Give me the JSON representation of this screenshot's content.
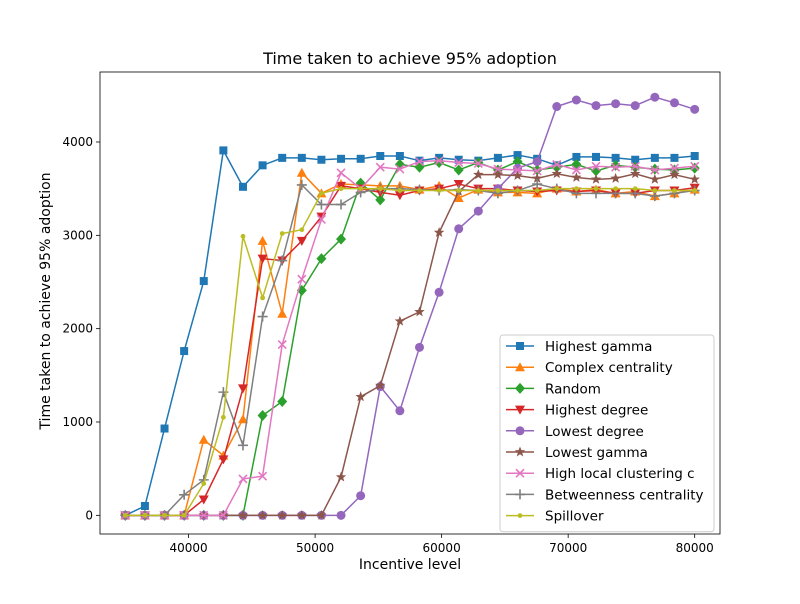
{
  "chart_data": {
    "type": "line",
    "title": "Time taken to achieve 95% adoption",
    "xlabel": "Incentive level",
    "ylabel": "Time taken to achieve 95% adoption",
    "xlim": [
      33000,
      82000
    ],
    "ylim": [
      -200,
      4750
    ],
    "xticks": [
      40000,
      50000,
      60000,
      70000,
      80000
    ],
    "yticks": [
      0,
      1000,
      2000,
      3000,
      4000
    ],
    "grid": false,
    "legend_position": "lower-right",
    "series": [
      {
        "name": "Highest gamma",
        "color": "#1f77b4",
        "marker": "square",
        "x": [
          35000,
          36550,
          38100,
          39650,
          41200,
          42750,
          44300,
          45850,
          47400,
          48950,
          50500,
          52050,
          53600,
          55150,
          56700,
          58250,
          59800,
          61350,
          62900,
          64450,
          66000,
          67550,
          69100,
          70650,
          72200,
          73750,
          75300,
          76850,
          78400,
          80000
        ],
        "y": [
          0,
          100,
          930,
          1760,
          2510,
          3910,
          3520,
          3750,
          3830,
          3830,
          3810,
          3820,
          3820,
          3850,
          3850,
          3800,
          3830,
          3810,
          3800,
          3830,
          3860,
          3820,
          3750,
          3840,
          3840,
          3830,
          3810,
          3830,
          3830,
          3850
        ]
      },
      {
        "name": "Complex centrality",
        "color": "#ff7f0e",
        "marker": "triangle-up",
        "x": [
          35000,
          36550,
          38100,
          39650,
          41200,
          42750,
          44300,
          45850,
          47400,
          48950,
          50500,
          52050,
          53600,
          55150,
          56700,
          58250,
          59800,
          61350,
          62900,
          64450,
          66000,
          67550,
          69100,
          70650,
          72200,
          73750,
          75300,
          76850,
          78400,
          80000
        ],
        "y": [
          0,
          0,
          0,
          0,
          810,
          640,
          1030,
          2940,
          2160,
          3670,
          3450,
          3550,
          3540,
          3530,
          3530,
          3490,
          3530,
          3400,
          3490,
          3460,
          3460,
          3450,
          3500,
          3470,
          3490,
          3450,
          3470,
          3420,
          3450,
          3490
        ]
      },
      {
        "name": "Random",
        "color": "#2ca02c",
        "marker": "diamond",
        "x": [
          35000,
          36550,
          38100,
          39650,
          41200,
          42750,
          44300,
          45850,
          47400,
          48950,
          50500,
          52050,
          53600,
          55150,
          56700,
          58250,
          59800,
          61350,
          62900,
          64450,
          66000,
          67550,
          69100,
          70650,
          72200,
          73750,
          75300,
          76850,
          78400,
          80000
        ],
        "y": [
          0,
          0,
          0,
          0,
          0,
          0,
          0,
          1070,
          1220,
          2410,
          2750,
          2960,
          3560,
          3380,
          3760,
          3730,
          3780,
          3700,
          3780,
          3700,
          3790,
          3700,
          3730,
          3760,
          3690,
          3750,
          3730,
          3710,
          3700,
          3720
        ]
      },
      {
        "name": "Highest degree",
        "color": "#d62728",
        "marker": "triangle-down",
        "x": [
          35000,
          36550,
          38100,
          39650,
          41200,
          42750,
          44300,
          45850,
          47400,
          48950,
          50500,
          52050,
          53600,
          55150,
          56700,
          58250,
          59800,
          61350,
          62900,
          64450,
          66000,
          67550,
          69100,
          70650,
          72200,
          73750,
          75300,
          76850,
          78400,
          80000
        ],
        "y": [
          0,
          0,
          0,
          0,
          170,
          600,
          1360,
          2750,
          2730,
          2940,
          3200,
          3530,
          3500,
          3460,
          3430,
          3480,
          3500,
          3550,
          3500,
          3500,
          3480,
          3470,
          3480,
          3470,
          3480,
          3450,
          3450,
          3480,
          3480,
          3510
        ]
      },
      {
        "name": "Lowest degree",
        "color": "#9467bd",
        "marker": "circle",
        "x": [
          35000,
          36550,
          38100,
          39650,
          41200,
          42750,
          44300,
          45850,
          47400,
          48950,
          50500,
          52050,
          53600,
          55150,
          56700,
          58250,
          59800,
          61350,
          62900,
          64450,
          66000,
          67550,
          69100,
          70650,
          72200,
          73750,
          75300,
          76850,
          78400,
          80000
        ],
        "y": [
          0,
          0,
          0,
          0,
          0,
          0,
          0,
          0,
          0,
          0,
          0,
          0,
          210,
          1380,
          1120,
          1800,
          2390,
          3070,
          3260,
          3500,
          3720,
          3790,
          4380,
          4450,
          4390,
          4410,
          4390,
          4480,
          4420,
          4350
        ]
      },
      {
        "name": "Lowest gamma",
        "color": "#8c564b",
        "marker": "star",
        "x": [
          35000,
          36550,
          38100,
          39650,
          41200,
          42750,
          44300,
          45850,
          47400,
          48950,
          50500,
          52050,
          53600,
          55150,
          56700,
          58250,
          59800,
          61350,
          62900,
          64450,
          66000,
          67550,
          69100,
          70650,
          72200,
          73750,
          75300,
          76850,
          78400,
          80000
        ],
        "y": [
          0,
          0,
          0,
          0,
          0,
          0,
          0,
          0,
          0,
          0,
          0,
          410,
          1270,
          1390,
          2080,
          2180,
          3030,
          3470,
          3650,
          3650,
          3640,
          3610,
          3660,
          3620,
          3600,
          3610,
          3660,
          3600,
          3650,
          3600
        ]
      },
      {
        "name": "High local clustering c",
        "color": "#e377c2",
        "marker": "x",
        "x": [
          35000,
          36550,
          38100,
          39650,
          41200,
          42750,
          44300,
          45850,
          47400,
          48950,
          50500,
          52050,
          53600,
          55150,
          56700,
          58250,
          59800,
          61350,
          62900,
          64450,
          66000,
          67550,
          69100,
          70650,
          72200,
          73750,
          75300,
          76850,
          78400,
          80000
        ],
        "y": [
          0,
          0,
          0,
          0,
          0,
          0,
          390,
          420,
          1830,
          2530,
          3170,
          3670,
          3500,
          3730,
          3710,
          3790,
          3800,
          3780,
          3770,
          3710,
          3700,
          3690,
          3760,
          3700,
          3740,
          3730,
          3740,
          3700,
          3720,
          3740
        ]
      },
      {
        "name": "Betweenness centrality",
        "color": "#7f7f7f",
        "marker": "plus",
        "x": [
          35000,
          36550,
          38100,
          39650,
          41200,
          42750,
          44300,
          45850,
          47400,
          48950,
          50500,
          52050,
          53600,
          55150,
          56700,
          58250,
          59800,
          61350,
          62900,
          64450,
          66000,
          67550,
          69100,
          70650,
          72200,
          73750,
          75300,
          76850,
          78400,
          80000
        ],
        "y": [
          0,
          0,
          0,
          220,
          380,
          1320,
          750,
          2130,
          2730,
          3540,
          3330,
          3330,
          3460,
          3500,
          3500,
          3490,
          3480,
          3490,
          3480,
          3450,
          3480,
          3550,
          3500,
          3450,
          3450,
          3450,
          3450,
          3420,
          3450,
          3480
        ]
      },
      {
        "name": "Spillover",
        "color": "#bcbd22",
        "marker": "point",
        "x": [
          35000,
          36550,
          38100,
          39650,
          41200,
          42750,
          44300,
          45850,
          47400,
          48950,
          50500,
          52050,
          53600,
          55150,
          56700,
          58250,
          59800,
          61350,
          62900,
          64450,
          66000,
          67550,
          69100,
          70650,
          72200,
          73750,
          75300,
          76850,
          78400,
          80000
        ],
        "y": [
          0,
          0,
          0,
          0,
          340,
          1050,
          2990,
          2330,
          3020,
          3060,
          3450,
          3500,
          3500,
          3500,
          3480,
          3480,
          3480,
          3480,
          3480,
          3480,
          3480,
          3480,
          3500,
          3500,
          3500,
          3500,
          3500,
          3480,
          3480,
          3480
        ]
      }
    ]
  }
}
